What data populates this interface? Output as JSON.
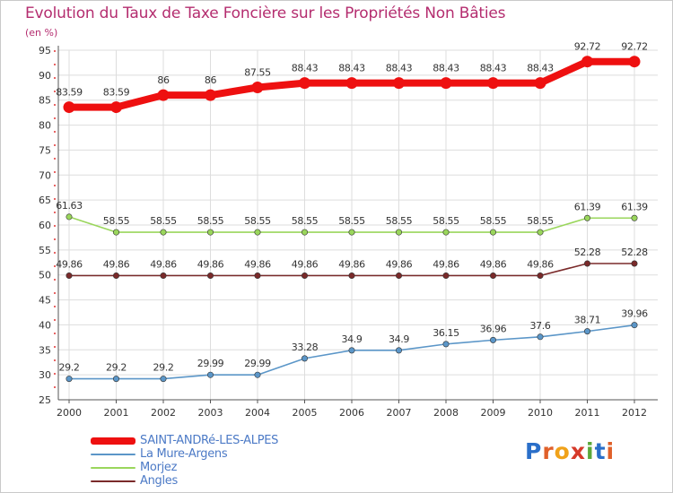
{
  "header": {
    "title": "Evolution du Taux de Taxe Foncière sur les Propriétés Non Bâties",
    "unit": "(en %)"
  },
  "logo": {
    "text": "Proxiti",
    "letters": [
      "P",
      "r",
      "o",
      "x",
      "i",
      "t",
      "i"
    ],
    "colors": [
      "#2a6fc9",
      "#e0602a",
      "#f0a21a",
      "#d63a2a",
      "#5ba83a",
      "#2a6fc9",
      "#e0602a"
    ]
  },
  "chart_data": {
    "type": "line",
    "title": "Evolution du Taux de Taxe Foncière sur les Propriétés Non Bâties",
    "ylabel": "(en %)",
    "xlabel": "",
    "ylim": [
      25,
      95
    ],
    "yticks": [
      25,
      30,
      35,
      40,
      45,
      50,
      55,
      60,
      65,
      70,
      75,
      80,
      85,
      90,
      95
    ],
    "grid": true,
    "x": [
      "2000",
      "2001",
      "2002",
      "2003",
      "2004",
      "2005",
      "2006",
      "2007",
      "2008",
      "2009",
      "2010",
      "2011",
      "2012"
    ],
    "series": [
      {
        "name": "SAINT-ANDRé-LES-ALPES",
        "color": "#ee1010",
        "values": [
          83.59,
          83.59,
          86,
          86,
          87.55,
          88.43,
          88.43,
          88.43,
          88.43,
          88.43,
          88.43,
          92.72,
          92.72
        ],
        "labels": [
          "83.59",
          "83.59",
          "86",
          "86",
          "87.55",
          "88.43",
          "88.43",
          "88.43",
          "88.43",
          "88.43",
          "88.43",
          "92.72",
          "92.72"
        ]
      },
      {
        "name": "La Mure-Argens",
        "color": "#5b96c8",
        "values": [
          29.2,
          29.2,
          29.2,
          29.99,
          29.99,
          33.28,
          34.9,
          34.9,
          36.15,
          36.96,
          37.6,
          38.71,
          39.96
        ],
        "labels": [
          "29.2",
          "29.2",
          "29.2",
          "29.99",
          "29.99",
          "33.28",
          "34.9",
          "34.9",
          "36.15",
          "36.96",
          "37.6",
          "38.71",
          "39.96"
        ]
      },
      {
        "name": "Morjez",
        "color": "#9ad65c",
        "values": [
          61.63,
          58.55,
          58.55,
          58.55,
          58.55,
          58.55,
          58.55,
          58.55,
          58.55,
          58.55,
          58.55,
          61.39,
          61.39
        ],
        "labels": [
          "61.63",
          "58.55",
          "58.55",
          "58.55",
          "58.55",
          "58.55",
          "58.55",
          "58.55",
          "58.55",
          "58.55",
          "58.55",
          "61.39",
          "61.39"
        ]
      },
      {
        "name": "Angles",
        "color": "#7a2a2a",
        "values": [
          49.86,
          49.86,
          49.86,
          49.86,
          49.86,
          49.86,
          49.86,
          49.86,
          49.86,
          49.86,
          49.86,
          52.28,
          52.28
        ],
        "labels": [
          "49.86",
          "49.86",
          "49.86",
          "49.86",
          "49.86",
          "49.86",
          "49.86",
          "49.86",
          "49.86",
          "49.86",
          "49.86",
          "52.28",
          "52.28"
        ]
      }
    ]
  }
}
